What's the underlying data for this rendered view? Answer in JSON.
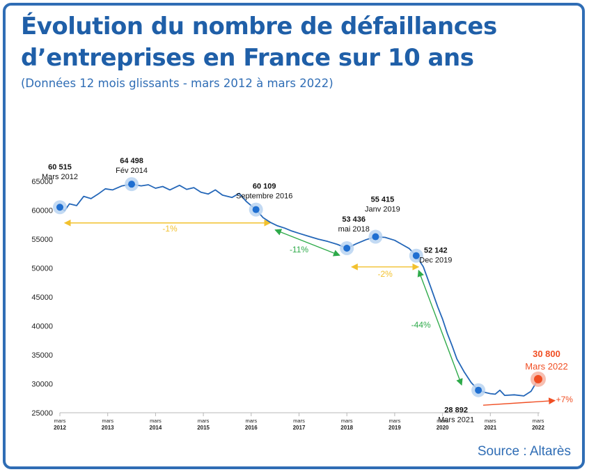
{
  "title": {
    "line1": "Évolution du nombre de défaillances",
    "line2_bold": "d’entreprises",
    "line2_rest": " en France sur 10 ans"
  },
  "subtitle": "(Données 12 mois glissants - mars 2012 à mars 2022)",
  "source": "Source : Altarès",
  "colors": {
    "title": "#1f5fa8",
    "line": "#2366b8",
    "point": "#1f6fd1",
    "highlight": "#f04e23",
    "arrow_yellow": "#f2c12e",
    "arrow_green": "#2eaa4a",
    "arrow_red": "#f04e23",
    "border": "#2f6db5"
  },
  "chart_data": {
    "type": "line",
    "ylim": [
      25000,
      65000
    ],
    "y_ticks": [
      "65000",
      "60000",
      "55000",
      "50000",
      "45000",
      "40000",
      "35000",
      "30000",
      "25000"
    ],
    "x_ticks": [
      {
        "top": "mars",
        "bottom": "2012",
        "t": 2012.0
      },
      {
        "top": "mars",
        "bottom": "2013",
        "t": 2013.0
      },
      {
        "top": "mars",
        "bottom": "2014",
        "t": 2014.0
      },
      {
        "top": "mars",
        "bottom": "2015",
        "t": 2015.0
      },
      {
        "top": "mars",
        "bottom": "2016",
        "t": 2016.0
      },
      {
        "top": "mars",
        "bottom": "2017",
        "t": 2017.0
      },
      {
        "top": "mars",
        "bottom": "2018",
        "t": 2018.0
      },
      {
        "top": "mars",
        "bottom": "2019",
        "t": 2019.0
      },
      {
        "top": "mars",
        "bottom": "2020",
        "t": 2020.0
      },
      {
        "top": "mars",
        "bottom": "2021",
        "t": 2021.0
      },
      {
        "top": "mars",
        "bottom": "2022",
        "t": 2022.0
      }
    ],
    "x": [
      2012.0,
      2012.1,
      2012.2,
      2012.35,
      2012.5,
      2012.65,
      2012.8,
      2012.95,
      2013.1,
      2013.3,
      2013.5,
      2013.7,
      2013.85,
      2014.0,
      2014.15,
      2014.3,
      2014.5,
      2014.65,
      2014.8,
      2014.95,
      2015.1,
      2015.25,
      2015.4,
      2015.6,
      2015.75,
      2015.9,
      2016.0,
      2016.1,
      2016.25,
      2016.4,
      2016.55,
      2016.7,
      2016.85,
      2017.0,
      2017.2,
      2017.4,
      2017.6,
      2017.8,
      2018.0,
      2018.2,
      2018.4,
      2018.6,
      2018.8,
      2019.0,
      2019.15,
      2019.3,
      2019.45,
      2019.6,
      2019.75,
      2019.9,
      2020.0,
      2020.1,
      2020.2,
      2020.3,
      2020.45,
      2020.6,
      2020.75,
      2020.9,
      2021.0,
      2021.1,
      2021.2,
      2021.3,
      2021.5,
      2021.7,
      2021.85,
      2022.0
    ],
    "y": [
      60515,
      59900,
      61100,
      60800,
      62400,
      62000,
      62800,
      63700,
      63500,
      64200,
      64498,
      64200,
      64400,
      63800,
      64100,
      63500,
      64300,
      63600,
      63900,
      63100,
      62800,
      63500,
      62600,
      62200,
      62900,
      61500,
      60800,
      60109,
      58700,
      57900,
      57300,
      56900,
      56400,
      56000,
      55500,
      55000,
      54600,
      54100,
      53436,
      54200,
      54900,
      55415,
      55300,
      54800,
      54100,
      53400,
      52142,
      50200,
      46800,
      43300,
      41200,
      38700,
      36600,
      34300,
      32100,
      30200,
      28892,
      28500,
      28300,
      28200,
      28892,
      28000,
      28100,
      27900,
      28700,
      30800
    ],
    "points": [
      {
        "t": 2012.0,
        "value": "60 515",
        "date": "Mars 2012",
        "y": 60515
      },
      {
        "t": 2013.5,
        "value": "64 498",
        "date": "Fév 2014",
        "y": 64498
      },
      {
        "t": 2016.1,
        "value": "60 109",
        "date": "Septembre 2016",
        "y": 60109
      },
      {
        "t": 2018.0,
        "value": "53 436",
        "date": "mai 2018",
        "y": 53436
      },
      {
        "t": 2018.6,
        "value": "55 415",
        "date": "Janv 2019",
        "y": 55415
      },
      {
        "t": 2019.45,
        "value": "52 142",
        "date": "Dec 2019",
        "y": 52142
      },
      {
        "t": 2020.75,
        "value": "28 892",
        "date": "Mars 2021",
        "y": 28892
      },
      {
        "t": 2022.0,
        "value": "30 800",
        "date": "Mars 2022",
        "y": 30800,
        "highlight": true
      }
    ],
    "annotations": [
      {
        "label": "-1%",
        "color": "yellow"
      },
      {
        "label": "-11%",
        "color": "green"
      },
      {
        "label": "-2%",
        "color": "yellow"
      },
      {
        "label": "-44%",
        "color": "green"
      },
      {
        "label": "+7%",
        "color": "red"
      }
    ]
  }
}
